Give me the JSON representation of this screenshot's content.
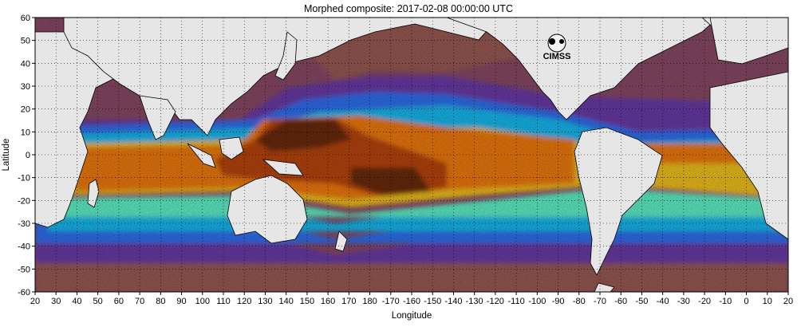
{
  "title": "Morphed composite: 2017-02-08 00:00:00 UTC",
  "xlabel": "Longitude",
  "ylabel": "Latitude",
  "logo": {
    "text": "CIMSS",
    "icon": "cimss-logo-icon"
  },
  "axes": {
    "lon_start": 20,
    "lon_end": 380,
    "lat_min": -60,
    "lat_max": 60,
    "x_ticks": [
      "20",
      "30",
      "40",
      "50",
      "60",
      "70",
      "80",
      "90",
      "100",
      "110",
      "120",
      "130",
      "140",
      "150",
      "160",
      "170",
      "180",
      "-170",
      "-160",
      "-150",
      "-140",
      "-130",
      "-120",
      "-110",
      "-100",
      "-90",
      "-80",
      "-70",
      "-60",
      "-50",
      "-40",
      "-30",
      "-20",
      "-10",
      "0",
      "10",
      "20"
    ],
    "y_ticks": [
      "60",
      "50",
      "40",
      "30",
      "20",
      "10",
      "0",
      "-10",
      "-20",
      "-30",
      "-40",
      "-50",
      "-60"
    ],
    "grid": "dotted"
  },
  "colors": {
    "land": "#e6e6e6",
    "very_dry": "#9a5a52",
    "dry": "#7a3f86",
    "low": "#5a34b8",
    "low_mid": "#2d6ff0",
    "mid": "#18b9f0",
    "mid_high": "#5ef2c8",
    "high": "#f2c21a",
    "very_high": "#f07a10",
    "max": "#b8440a",
    "extreme": "#5a2408",
    "coast": "#000000",
    "grid": "#000000"
  }
}
